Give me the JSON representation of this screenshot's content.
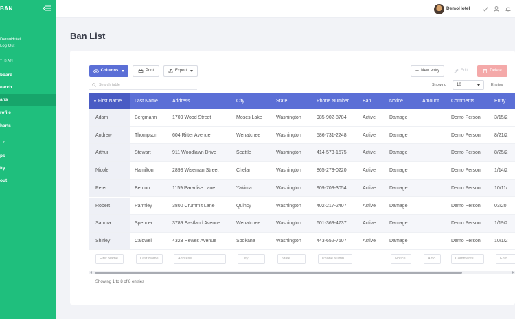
{
  "sidebar": {
    "brand": "BAN",
    "user_name": "DemoHotel",
    "user_logout": "Log Out",
    "section_ban": "T BAN",
    "items_main": [
      {
        "label": "board",
        "active": false
      },
      {
        "label": "earch",
        "active": false
      },
      {
        "label": "ans",
        "active": true
      },
      {
        "label": "rofile",
        "active": false
      },
      {
        "label": "harts",
        "active": false
      }
    ],
    "section_other": "TY",
    "items_other": [
      {
        "label": "ps"
      },
      {
        "label": "ity"
      },
      {
        "label": "out"
      }
    ]
  },
  "topbar": {
    "user_name": "DemoHotel",
    "icons": [
      "check-icon",
      "users-icon",
      "bell-icon"
    ]
  },
  "page": {
    "title": "Ban List"
  },
  "toolbar": {
    "columns_label": "Columns",
    "print_label": "Print",
    "export_label": "Export",
    "new_entry_label": "New entry",
    "edit_label": "Edit",
    "delete_label": "Delete"
  },
  "search": {
    "placeholder": "Search table"
  },
  "pagination": {
    "showing_label": "Showing",
    "entries_value": "10",
    "entries_label": "Entries"
  },
  "table": {
    "headers": [
      "First Name",
      "Last Name",
      "Address",
      "City",
      "State",
      "Phone Number",
      "Ban",
      "Notice",
      "Amount",
      "Comments",
      "Entry"
    ],
    "rows": [
      [
        "Adam",
        "Bergmann",
        "1709 Wood Street",
        "Moses Lake",
        "Washington",
        "985-902-8784",
        "Active",
        "Damage",
        "",
        "Demo Person",
        "3/15/2"
      ],
      [
        "Andrew",
        "Thompson",
        "604 Ritter Avenue",
        "Wenatchee",
        "Washington",
        "586-731-2248",
        "Active",
        "Damage",
        "",
        "Demo Person",
        "8/21/2"
      ],
      [
        "Arthur",
        "Stewart",
        "911 Woodlawn Drive",
        "Seattle",
        "Washington",
        "414-573-1575",
        "Active",
        "Damage",
        "",
        "Demo Person",
        "8/25/2"
      ],
      [
        "Nicole",
        "Hamilton",
        "2898 Wiseman Street",
        "Chelan",
        "Washington",
        "865-273-0220",
        "Active",
        "Damage",
        "",
        "Demo Person",
        "1/14/2"
      ],
      [
        "Peter",
        "Benton",
        "1159 Paradise Lane",
        "Yakima",
        "Washington",
        "909-709-3054",
        "Active",
        "Damage",
        "",
        "Demo Person",
        "10/11/"
      ],
      [
        "Robert",
        "Parmley",
        "3800 Crummit Lane",
        "Quincy",
        "Washington",
        "402-217-2407",
        "Active",
        "Damage",
        "",
        "Demo Person",
        "03/20"
      ],
      [
        "Sandra",
        "Spencer",
        "3789 Eastland Avenue",
        "Wenatchee",
        "Washington",
        "601-369-4737",
        "Active",
        "Damage",
        "",
        "Demo Person",
        "1/19/2"
      ],
      [
        "Shirley",
        "Caldwell",
        "4323 Hewes Avenue",
        "Spokane",
        "Washington",
        "443-652-7607",
        "Active",
        "Damage",
        "",
        "Demo Person",
        "10/1/2"
      ]
    ],
    "filters": [
      "First Name",
      "Last Name",
      "Address",
      "City",
      "State",
      "Phone Numb...",
      "Notice",
      "Amo...",
      "Comments",
      "Entr"
    ]
  },
  "footer": {
    "info": "Showing 1 to 8 of 8 entries"
  },
  "colors": {
    "sidebar": "#1fbf7d",
    "accent": "#5b6fd6",
    "danger": "#f4a9a9"
  }
}
